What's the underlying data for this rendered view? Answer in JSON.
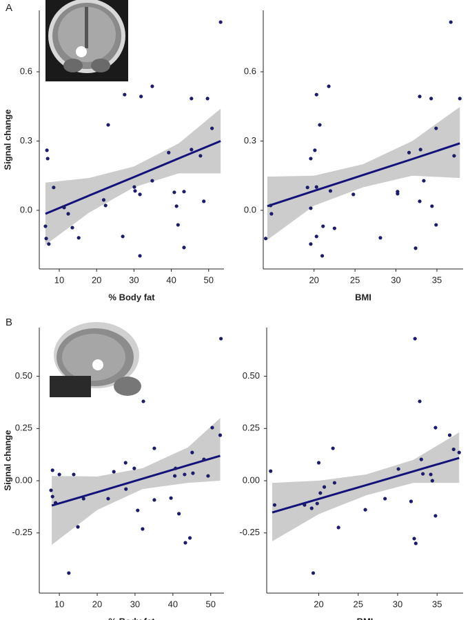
{
  "panel_labels": [
    "A",
    "B"
  ],
  "chart_data": [
    {
      "type": "scatter",
      "x_label": "% Body fat",
      "y_label": "Signal change",
      "color": "#1c1c6b",
      "fit_color": "#12127a",
      "band_color": "#cccccc",
      "x": [
        53.2,
        34.9,
        27.5,
        31.9,
        45.4,
        49.7,
        23.1,
        50.9,
        6.7,
        6.9,
        39.3,
        45.4,
        47.8,
        8.5,
        30.3,
        30.1,
        34.9,
        21.9,
        22.4,
        40.8,
        43.4,
        41.4,
        48.7,
        11.3,
        31.6,
        12.4,
        13.5,
        6.3,
        6.5,
        7.2,
        15.2,
        27.0,
        41.8,
        43.4,
        31.6
      ],
      "values": [
        0.815,
        0.537,
        0.501,
        0.493,
        0.484,
        0.484,
        0.37,
        0.355,
        0.26,
        0.224,
        0.25,
        0.263,
        0.236,
        0.099,
        0.084,
        0.101,
        0.128,
        0.045,
        0.021,
        0.078,
        0.081,
        0.018,
        0.039,
        0.012,
        0.069,
        -0.015,
        -0.075,
        -0.069,
        -0.122,
        -0.146,
        -0.119,
        -0.113,
        -0.063,
        -0.161,
        -0.197
      ],
      "fit": {
        "x": [
          6.3,
          18,
          30,
          42,
          53.2
        ],
        "y": [
          -0.015,
          0.064,
          0.144,
          0.225,
          0.3
        ],
        "upper": [
          0.12,
          0.14,
          0.19,
          0.29,
          0.44
        ],
        "lower": [
          -0.15,
          -0.01,
          0.1,
          0.16,
          0.16
        ]
      },
      "xlim": [
        4.65,
        54.1
      ],
      "ylim": [
        -0.254,
        0.866
      ],
      "xticks": [
        10,
        20,
        30,
        40,
        50
      ],
      "yticks": [
        {
          "value": 0,
          "label": "0.0"
        },
        0.3,
        0.6
      ]
    },
    {
      "type": "scatter",
      "x_label": "BMI",
      "color": "#1c1c6b",
      "fit_color": "#12127a",
      "band_color": "#cccccc",
      "x": [
        36.7,
        21.8,
        20.3,
        32.9,
        34.3,
        37.8,
        20.7,
        34.9,
        19.6,
        20.1,
        31.6,
        33.0,
        37.1,
        19.2,
        20.3,
        33.4,
        22.0,
        24.8,
        30.2,
        30.2,
        14.7,
        14.8,
        19.6,
        32.9,
        34.4,
        14.1,
        19.6,
        20.3,
        21.1,
        22.5,
        34.9,
        28.1,
        32.4,
        21.0
      ],
      "values": [
        0.815,
        0.537,
        0.501,
        0.493,
        0.484,
        0.484,
        0.37,
        0.355,
        0.224,
        0.26,
        0.25,
        0.263,
        0.236,
        0.099,
        0.101,
        0.128,
        0.084,
        0.069,
        0.081,
        0.072,
        0.021,
        -0.015,
        0.009,
        0.039,
        0.018,
        -0.122,
        -0.146,
        -0.113,
        -0.069,
        -0.078,
        -0.063,
        -0.119,
        -0.164,
        -0.197
      ],
      "fit": {
        "x": [
          14.3,
          20,
          26,
          32,
          37.8
        ],
        "y": [
          0.018,
          0.084,
          0.153,
          0.222,
          0.29
        ],
        "upper": [
          0.146,
          0.15,
          0.2,
          0.3,
          0.448
        ],
        "lower": [
          -0.128,
          0.02,
          0.1,
          0.15,
          0.14
        ]
      },
      "xlim": [
        13.8,
        38.2
      ],
      "ylim": [
        -0.254,
        0.866
      ],
      "xticks": [
        20,
        25,
        30,
        35
      ],
      "yticks": [
        {
          "value": 0,
          "label": "0.0"
        },
        0.3,
        0.6
      ]
    },
    {
      "type": "scatter",
      "x_label": "% Body fat",
      "y_label": "Signal change",
      "color": "#1c1c6b",
      "fit_color": "#12127a",
      "band_color": "#cccccc",
      "x": [
        52.7,
        32.2,
        52.5,
        50.4,
        35.1,
        27.5,
        48.2,
        45.1,
        8.2,
        10.0,
        13.8,
        7.8,
        8.2,
        9.0,
        16.4,
        14.9,
        12.5,
        22.9,
        24.4,
        27.6,
        29.8,
        30.7,
        32.0,
        35.1,
        39.5,
        40.7,
        41.6,
        43.3,
        44.5,
        43.1,
        45.3,
        49.3,
        40.5
      ],
      "values": [
        0.68,
        0.38,
        0.218,
        0.254,
        0.155,
        0.086,
        0.102,
        0.135,
        0.05,
        0.03,
        0.03,
        -0.046,
        -0.076,
        -0.106,
        -0.086,
        -0.221,
        -0.442,
        -0.086,
        0.043,
        -0.04,
        0.059,
        -0.142,
        -0.231,
        -0.092,
        -0.083,
        0.059,
        -0.158,
        -0.297,
        -0.274,
        0.03,
        0.036,
        0.023,
        0.023
      ],
      "fit": {
        "x": [
          8,
          20,
          32,
          44,
          52.5
        ],
        "y": [
          -0.119,
          -0.055,
          0.01,
          0.074,
          0.119
        ],
        "upper": [
          0.023,
          0.02,
          0.06,
          0.16,
          0.3
        ],
        "lower": [
          -0.307,
          -0.14,
          -0.04,
          -0.01,
          0.0
        ]
      },
      "xlim": [
        4.7,
        53.5
      ],
      "ylim": [
        -0.538,
        0.733
      ],
      "xticks": [
        10,
        20,
        30,
        40,
        50
      ],
      "yticks": [
        {
          "value": -0.25,
          "label": "-0.25"
        },
        {
          "value": 0,
          "label": "0.00"
        },
        0.25,
        {
          "value": 0.5,
          "label": "0.50"
        }
      ]
    },
    {
      "type": "scatter",
      "x_label": "BMI",
      "color": "#1c1c6b",
      "fit_color": "#12127a",
      "band_color": "#cccccc",
      "x": [
        32.2,
        32.8,
        34.8,
        36.6,
        37.8,
        37.1,
        21.8,
        20.0,
        30.1,
        33.0,
        31.7,
        32.1,
        32.3,
        22.5,
        19.3,
        25.9,
        28.4,
        34.4,
        13.9,
        14.4,
        18.2,
        19.1,
        19.8,
        20.2,
        20.7,
        22.0,
        34.8,
        34.2,
        33.2
      ],
      "values": [
        0.68,
        0.38,
        0.254,
        0.218,
        0.135,
        0.15,
        0.155,
        0.086,
        0.056,
        0.102,
        -0.099,
        -0.277,
        -0.3,
        -0.224,
        -0.442,
        -0.139,
        -0.086,
        0.0,
        0.046,
        -0.116,
        -0.116,
        -0.132,
        -0.109,
        -0.059,
        -0.03,
        -0.01,
        -0.168,
        0.03,
        0.033
      ],
      "fit": {
        "x": [
          14.1,
          20,
          26,
          32,
          37.8
        ],
        "y": [
          -0.152,
          -0.087,
          -0.021,
          0.045,
          0.109
        ],
        "upper": [
          -0.01,
          0.0,
          0.03,
          0.1,
          0.231
        ],
        "lower": [
          -0.29,
          -0.16,
          -0.07,
          -0.01,
          -0.01
        ]
      },
      "xlim": [
        13.4,
        38.3
      ],
      "ylim": [
        -0.538,
        0.733
      ],
      "xticks": [
        20,
        25,
        30,
        35
      ],
      "yticks": [
        {
          "value": -0.25,
          "label": "-0.25"
        },
        {
          "value": 0,
          "label": "0.00"
        },
        0.25,
        {
          "value": 0.5,
          "label": "0.50"
        }
      ]
    }
  ]
}
